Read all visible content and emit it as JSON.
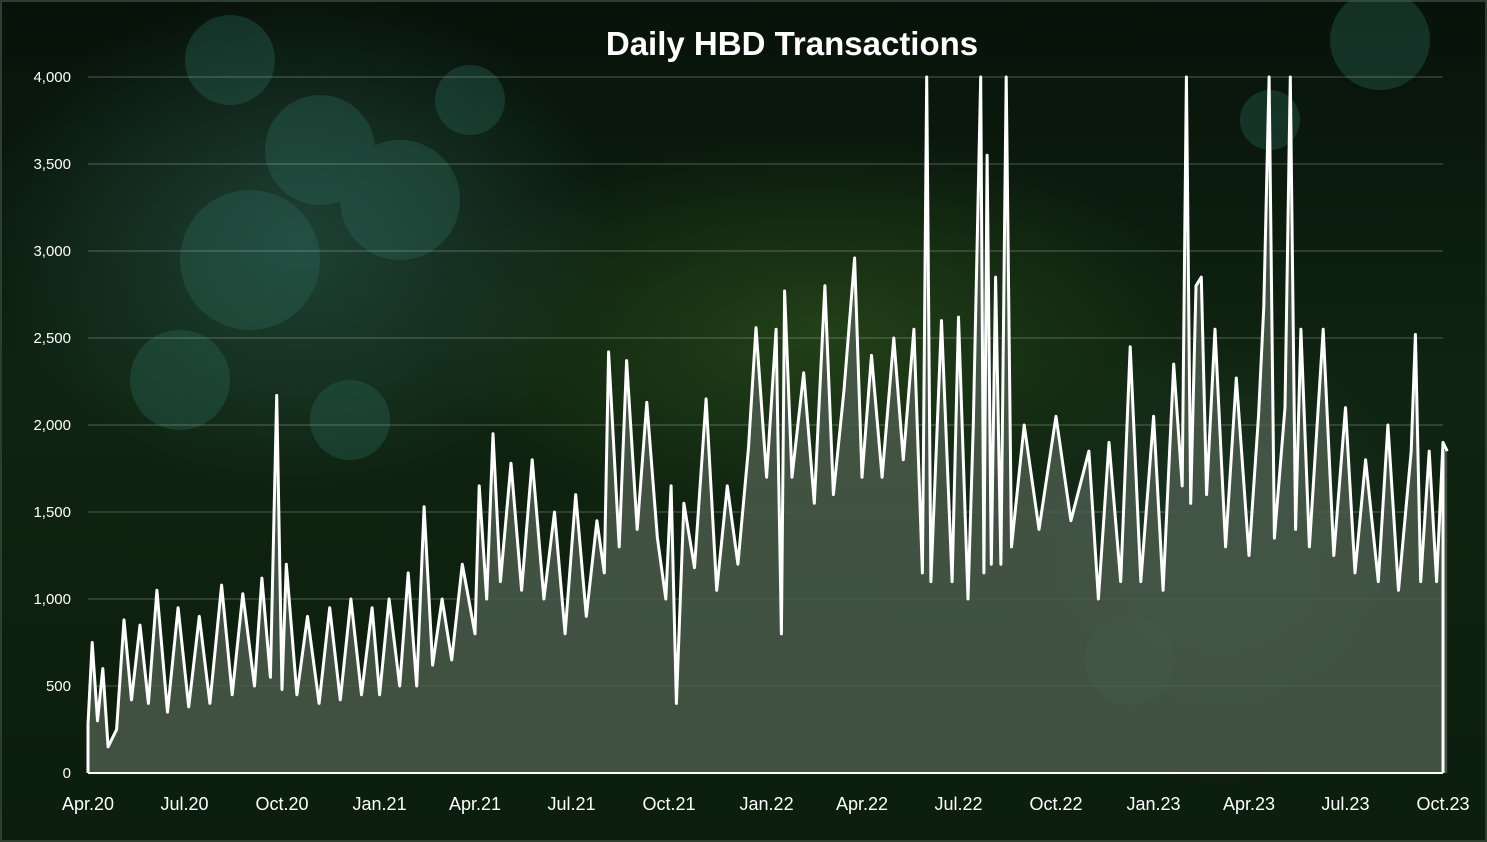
{
  "chart_data": {
    "type": "area",
    "title": "Daily HBD Transactions",
    "xlabel": "",
    "ylabel": "",
    "ylim": [
      0,
      4000
    ],
    "yticks": [
      0,
      500,
      1000,
      1500,
      2000,
      2500,
      3000,
      3500,
      4000
    ],
    "ytick_labels": [
      "0",
      "500",
      "1,000",
      "1,500",
      "2,000",
      "2,500",
      "3,000",
      "3,500",
      "4,000"
    ],
    "xticks": [
      "2020-04-01",
      "2020-07-01",
      "2020-10-01",
      "2021-01-01",
      "2021-04-01",
      "2021-07-01",
      "2021-10-01",
      "2022-01-01",
      "2022-04-01",
      "2022-07-01",
      "2022-10-01",
      "2023-01-01",
      "2023-04-01",
      "2023-07-01",
      "2023-10-01"
    ],
    "xtick_labels": [
      "Apr.20",
      "Jul.20",
      "Oct.20",
      "Jan.21",
      "Apr.21",
      "Jul.21",
      "Oct.21",
      "Jan.22",
      "Apr.22",
      "Jul.22",
      "Oct.22",
      "Jan.23",
      "Apr.23",
      "Jul.23",
      "Oct.23"
    ],
    "grid": true,
    "legend": "none",
    "colors": {
      "line": "#ffffff",
      "area": "#4a5a4a",
      "grid": "#ffffff"
    },
    "series": [
      {
        "values": [
          [
            "2020-04-01",
            280
          ],
          [
            "2020-04-05",
            750
          ],
          [
            "2020-04-10",
            300
          ],
          [
            "2020-04-15",
            600
          ],
          [
            "2020-04-20",
            150
          ],
          [
            "2020-04-28",
            250
          ],
          [
            "2020-05-05",
            880
          ],
          [
            "2020-05-12",
            420
          ],
          [
            "2020-05-20",
            850
          ],
          [
            "2020-05-28",
            400
          ],
          [
            "2020-06-05",
            1050
          ],
          [
            "2020-06-15",
            350
          ],
          [
            "2020-06-25",
            950
          ],
          [
            "2020-07-05",
            380
          ],
          [
            "2020-07-15",
            900
          ],
          [
            "2020-07-25",
            400
          ],
          [
            "2020-08-05",
            1080
          ],
          [
            "2020-08-15",
            450
          ],
          [
            "2020-08-25",
            1030
          ],
          [
            "2020-09-05",
            500
          ],
          [
            "2020-09-12",
            1120
          ],
          [
            "2020-09-20",
            550
          ],
          [
            "2020-09-26",
            2170
          ],
          [
            "2020-10-01",
            480
          ],
          [
            "2020-10-05",
            1200
          ],
          [
            "2020-10-15",
            450
          ],
          [
            "2020-10-25",
            900
          ],
          [
            "2020-11-05",
            400
          ],
          [
            "2020-11-15",
            950
          ],
          [
            "2020-11-25",
            420
          ],
          [
            "2020-12-05",
            1000
          ],
          [
            "2020-12-15",
            450
          ],
          [
            "2020-12-25",
            950
          ],
          [
            "2021-01-01",
            450
          ],
          [
            "2021-01-10",
            1000
          ],
          [
            "2021-01-20",
            500
          ],
          [
            "2021-01-28",
            1150
          ],
          [
            "2021-02-05",
            500
          ],
          [
            "2021-02-12",
            1530
          ],
          [
            "2021-02-20",
            620
          ],
          [
            "2021-03-01",
            1000
          ],
          [
            "2021-03-10",
            650
          ],
          [
            "2021-03-20",
            1200
          ],
          [
            "2021-04-01",
            800
          ],
          [
            "2021-04-05",
            1650
          ],
          [
            "2021-04-12",
            1000
          ],
          [
            "2021-04-18",
            1950
          ],
          [
            "2021-04-25",
            1100
          ],
          [
            "2021-05-05",
            1780
          ],
          [
            "2021-05-15",
            1050
          ],
          [
            "2021-05-25",
            1800
          ],
          [
            "2021-06-05",
            1000
          ],
          [
            "2021-06-15",
            1500
          ],
          [
            "2021-06-25",
            800
          ],
          [
            "2021-07-05",
            1600
          ],
          [
            "2021-07-15",
            900
          ],
          [
            "2021-07-25",
            1450
          ],
          [
            "2021-08-01",
            1150
          ],
          [
            "2021-08-05",
            2420
          ],
          [
            "2021-08-15",
            1300
          ],
          [
            "2021-08-22",
            2370
          ],
          [
            "2021-09-01",
            1400
          ],
          [
            "2021-09-10",
            2130
          ],
          [
            "2021-09-20",
            1350
          ],
          [
            "2021-09-28",
            1000
          ],
          [
            "2021-10-03",
            1650
          ],
          [
            "2021-10-08",
            400
          ],
          [
            "2021-10-15",
            1550
          ],
          [
            "2021-10-25",
            1180
          ],
          [
            "2021-11-05",
            2150
          ],
          [
            "2021-11-15",
            1050
          ],
          [
            "2021-11-25",
            1650
          ],
          [
            "2021-12-05",
            1200
          ],
          [
            "2021-12-15",
            1870
          ],
          [
            "2021-12-22",
            2560
          ],
          [
            "2022-01-01",
            1700
          ],
          [
            "2022-01-10",
            2550
          ],
          [
            "2022-01-15",
            800
          ],
          [
            "2022-01-18",
            2770
          ],
          [
            "2022-01-25",
            1700
          ],
          [
            "2022-02-05",
            2300
          ],
          [
            "2022-02-15",
            1550
          ],
          [
            "2022-02-25",
            2800
          ],
          [
            "2022-03-05",
            1600
          ],
          [
            "2022-03-15",
            2200
          ],
          [
            "2022-03-25",
            2960
          ],
          [
            "2022-04-01",
            1700
          ],
          [
            "2022-04-10",
            2400
          ],
          [
            "2022-04-20",
            1700
          ],
          [
            "2022-05-01",
            2500
          ],
          [
            "2022-05-10",
            1800
          ],
          [
            "2022-05-20",
            2550
          ],
          [
            "2022-05-28",
            1150
          ],
          [
            "2022-06-01",
            4000
          ],
          [
            "2022-06-05",
            1100
          ],
          [
            "2022-06-15",
            2600
          ],
          [
            "2022-06-25",
            1100
          ],
          [
            "2022-07-01",
            2620
          ],
          [
            "2022-07-10",
            1000
          ],
          [
            "2022-07-15",
            2000
          ],
          [
            "2022-07-22",
            4000
          ],
          [
            "2022-07-25",
            1150
          ],
          [
            "2022-07-28",
            3550
          ],
          [
            "2022-08-01",
            1200
          ],
          [
            "2022-08-05",
            2850
          ],
          [
            "2022-08-10",
            1200
          ],
          [
            "2022-08-15",
            4000
          ],
          [
            "2022-08-20",
            1300
          ],
          [
            "2022-09-01",
            2000
          ],
          [
            "2022-09-15",
            1400
          ],
          [
            "2022-10-01",
            2050
          ],
          [
            "2022-10-15",
            1450
          ],
          [
            "2022-11-01",
            1850
          ],
          [
            "2022-11-10",
            1000
          ],
          [
            "2022-11-20",
            1900
          ],
          [
            "2022-12-01",
            1100
          ],
          [
            "2022-12-10",
            2450
          ],
          [
            "2022-12-20",
            1100
          ],
          [
            "2023-01-01",
            2050
          ],
          [
            "2023-01-10",
            1050
          ],
          [
            "2023-01-20",
            2350
          ],
          [
            "2023-01-28",
            1650
          ],
          [
            "2023-02-01",
            4000
          ],
          [
            "2023-02-05",
            1550
          ],
          [
            "2023-02-10",
            2800
          ],
          [
            "2023-02-15",
            2850
          ],
          [
            "2023-02-20",
            1600
          ],
          [
            "2023-02-28",
            2550
          ],
          [
            "2023-03-10",
            1300
          ],
          [
            "2023-03-20",
            2270
          ],
          [
            "2023-04-01",
            1250
          ],
          [
            "2023-04-10",
            2050
          ],
          [
            "2023-04-15",
            2680
          ],
          [
            "2023-04-20",
            4000
          ],
          [
            "2023-04-25",
            1350
          ],
          [
            "2023-05-05",
            2100
          ],
          [
            "2023-05-10",
            4000
          ],
          [
            "2023-05-15",
            1400
          ],
          [
            "2023-05-20",
            2550
          ],
          [
            "2023-05-28",
            1300
          ],
          [
            "2023-06-10",
            2550
          ],
          [
            "2023-06-20",
            1250
          ],
          [
            "2023-07-01",
            2100
          ],
          [
            "2023-07-10",
            1150
          ],
          [
            "2023-07-20",
            1800
          ],
          [
            "2023-08-01",
            1100
          ],
          [
            "2023-08-10",
            2000
          ],
          [
            "2023-08-20",
            1050
          ],
          [
            "2023-09-01",
            1850
          ],
          [
            "2023-09-05",
            2520
          ],
          [
            "2023-09-10",
            1100
          ],
          [
            "2023-09-18",
            1850
          ],
          [
            "2023-09-25",
            1100
          ],
          [
            "2023-10-01",
            1900
          ],
          [
            "2023-10-05",
            1850
          ]
        ]
      }
    ]
  }
}
